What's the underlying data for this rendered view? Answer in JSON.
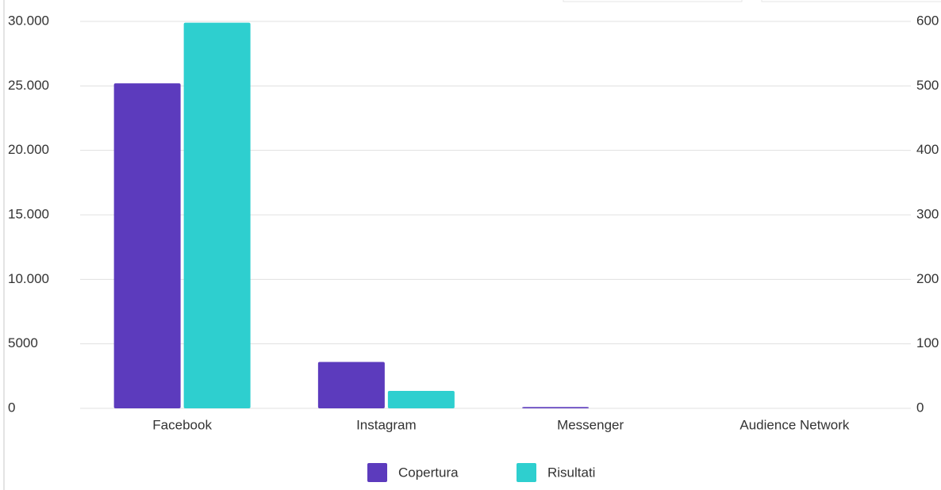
{
  "chart_data": {
    "type": "bar",
    "categories": [
      "Facebook",
      "Instagram",
      "Messenger",
      "Audience Network"
    ],
    "series": [
      {
        "name": "Copertura",
        "color": "#5c3bbd",
        "values": [
          25200,
          3600,
          100,
          0
        ]
      },
      {
        "name": "Risultati",
        "color": "#2ecfcf",
        "axis": "y2",
        "values": [
          598,
          27,
          0,
          0
        ]
      }
    ],
    "ylim": [
      0,
      30000
    ],
    "yticks": [
      0,
      5000,
      {
        "value": 10000,
        "label": "10.000"
      },
      {
        "value": 15000,
        "label": "15.000"
      },
      {
        "value": 20000,
        "label": "20.000"
      },
      {
        "value": 25000,
        "label": "25.000"
      },
      {
        "value": 30000,
        "label": "30.000"
      }
    ],
    "y2lim": [
      0,
      600
    ],
    "y2ticks": [
      0,
      100,
      200,
      300,
      400,
      500,
      600
    ],
    "grid": true,
    "legend": "bottom"
  }
}
